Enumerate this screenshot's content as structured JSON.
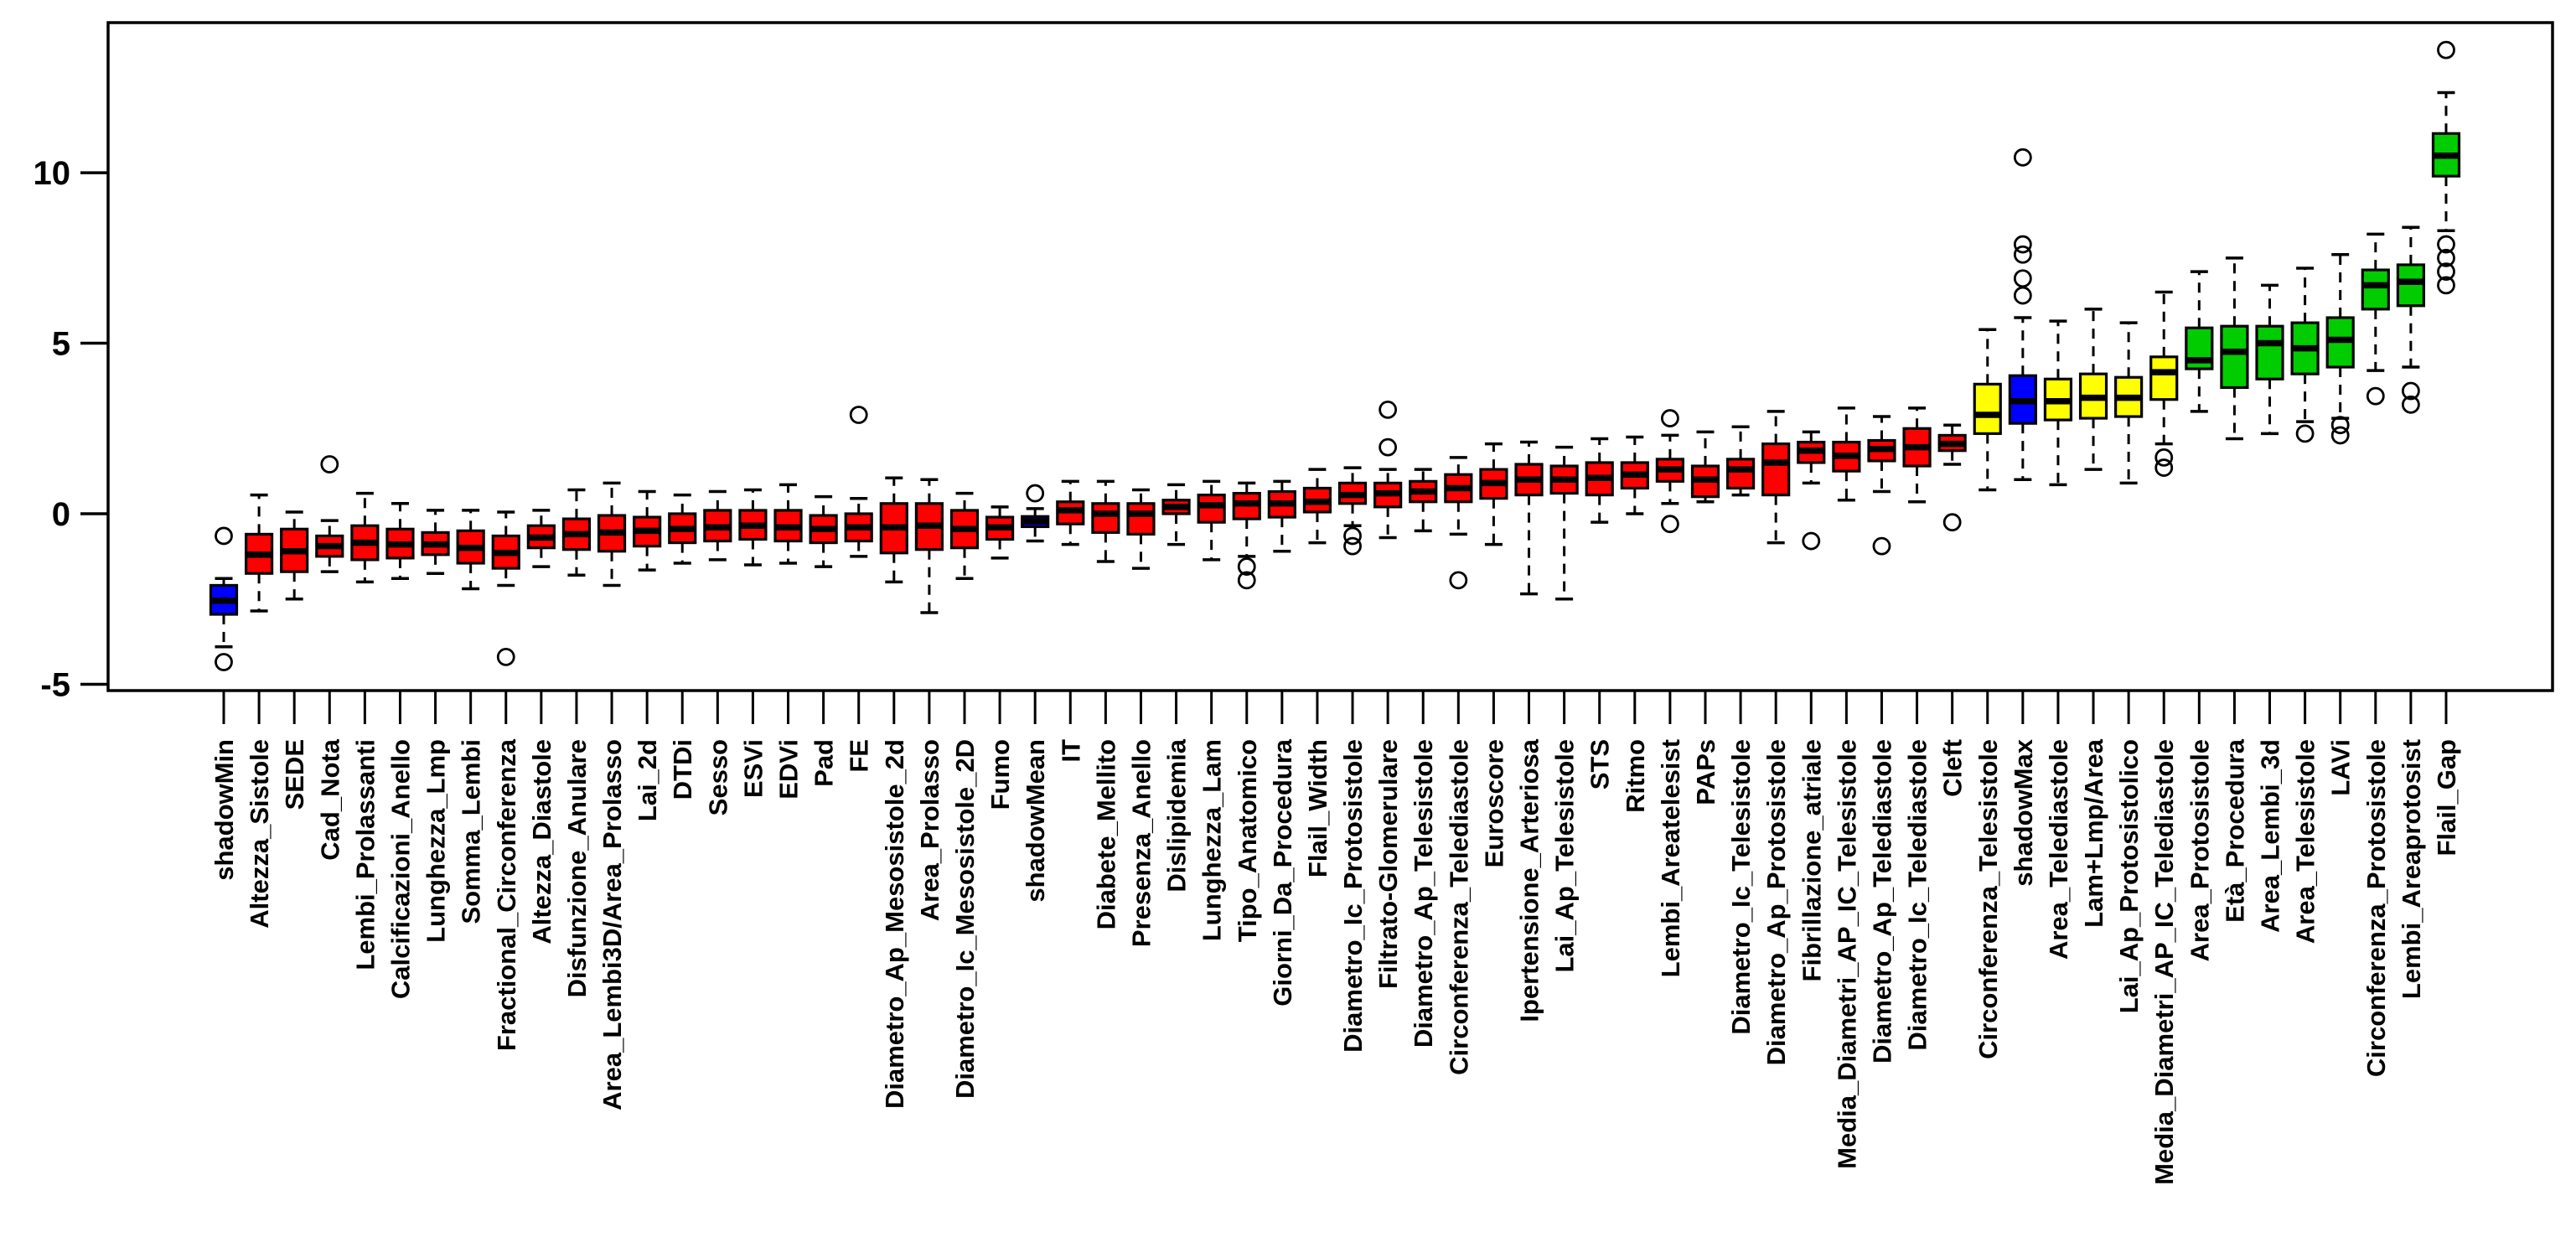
{
  "chart_data": {
    "type": "bar",
    "subtype": "boxplot",
    "title": "",
    "xlabel": "",
    "ylabel": "",
    "ylim": [
      -5.2,
      14.4
    ],
    "yticks": [
      -5,
      0,
      5,
      10
    ],
    "grid": false,
    "legend": "none",
    "colors": {
      "rejected": "#FF0000",
      "tentative": "#FFFF00",
      "confirmed": "#00CC00",
      "shadow": "#0000FF",
      "axis": "#000000"
    },
    "boxes": [
      {
        "label": "shadowMin",
        "color": "shadow",
        "med": -2.55,
        "q1": -2.95,
        "q3": -2.1,
        "lo": -3.9,
        "hi": -1.9,
        "out": [
          -0.65,
          -4.35
        ]
      },
      {
        "label": "Altezza_Sistole",
        "color": "rejected",
        "med": -1.2,
        "q1": -1.75,
        "q3": -0.6,
        "lo": -2.85,
        "hi": 0.55,
        "out": []
      },
      {
        "label": "SEDE",
        "color": "rejected",
        "med": -1.1,
        "q1": -1.7,
        "q3": -0.45,
        "lo": -2.5,
        "hi": 0.05,
        "out": []
      },
      {
        "label": "Cad_Nota",
        "color": "rejected",
        "med": -0.95,
        "q1": -1.25,
        "q3": -0.65,
        "lo": -1.7,
        "hi": -0.2,
        "out": [
          1.45
        ]
      },
      {
        "label": "Lembi_Prolassanti",
        "color": "rejected",
        "med": -0.85,
        "q1": -1.35,
        "q3": -0.35,
        "lo": -2.0,
        "hi": 0.6,
        "out": []
      },
      {
        "label": "Calcificazioni_Anello",
        "color": "rejected",
        "med": -0.9,
        "q1": -1.3,
        "q3": -0.45,
        "lo": -1.9,
        "hi": 0.3,
        "out": []
      },
      {
        "label": "Lunghezza_Lmp",
        "color": "rejected",
        "med": -0.9,
        "q1": -1.2,
        "q3": -0.55,
        "lo": -1.75,
        "hi": 0.1,
        "out": []
      },
      {
        "label": "Somma_Lembi",
        "color": "rejected",
        "med": -1.0,
        "q1": -1.45,
        "q3": -0.5,
        "lo": -2.2,
        "hi": 0.1,
        "out": []
      },
      {
        "label": "Fractional_Circonferenza",
        "color": "rejected",
        "med": -1.15,
        "q1": -1.6,
        "q3": -0.65,
        "lo": -2.1,
        "hi": 0.05,
        "out": [
          -4.2
        ]
      },
      {
        "label": "Altezza_Diastole",
        "color": "rejected",
        "med": -0.7,
        "q1": -1.0,
        "q3": -0.35,
        "lo": -1.55,
        "hi": 0.1,
        "out": []
      },
      {
        "label": "Disfunzione_Anulare",
        "color": "rejected",
        "med": -0.6,
        "q1": -1.05,
        "q3": -0.15,
        "lo": -1.8,
        "hi": 0.7,
        "out": []
      },
      {
        "label": "Area_Lembi3D/Area_Prolasso",
        "color": "rejected",
        "med": -0.55,
        "q1": -1.1,
        "q3": -0.05,
        "lo": -2.1,
        "hi": 0.9,
        "out": []
      },
      {
        "label": "Lai_2d",
        "color": "rejected",
        "med": -0.5,
        "q1": -0.95,
        "q3": -0.1,
        "lo": -1.65,
        "hi": 0.65,
        "out": []
      },
      {
        "label": "DTDi",
        "color": "rejected",
        "med": -0.45,
        "q1": -0.85,
        "q3": 0.0,
        "lo": -1.45,
        "hi": 0.55,
        "out": []
      },
      {
        "label": "Sesso",
        "color": "rejected",
        "med": -0.4,
        "q1": -0.8,
        "q3": 0.1,
        "lo": -1.35,
        "hi": 0.65,
        "out": []
      },
      {
        "label": "ESVi",
        "color": "rejected",
        "med": -0.35,
        "q1": -0.75,
        "q3": 0.1,
        "lo": -1.5,
        "hi": 0.7,
        "out": []
      },
      {
        "label": "EDVi",
        "color": "rejected",
        "med": -0.4,
        "q1": -0.8,
        "q3": 0.1,
        "lo": -1.45,
        "hi": 0.85,
        "out": []
      },
      {
        "label": "Pad",
        "color": "rejected",
        "med": -0.45,
        "q1": -0.85,
        "q3": -0.05,
        "lo": -1.55,
        "hi": 0.5,
        "out": []
      },
      {
        "label": "FE",
        "color": "rejected",
        "med": -0.4,
        "q1": -0.8,
        "q3": 0.0,
        "lo": -1.25,
        "hi": 0.45,
        "out": [
          2.9
        ]
      },
      {
        "label": "Diametro_Ap_Mesosistole_2d",
        "color": "rejected",
        "med": -0.4,
        "q1": -1.15,
        "q3": 0.3,
        "lo": -2.0,
        "hi": 1.05,
        "out": []
      },
      {
        "label": "Area_Prolasso",
        "color": "rejected",
        "med": -0.35,
        "q1": -1.05,
        "q3": 0.3,
        "lo": -2.9,
        "hi": 1.0,
        "out": []
      },
      {
        "label": "Diametro_Ic_Mesosistole_2D",
        "color": "rejected",
        "med": -0.45,
        "q1": -1.0,
        "q3": 0.1,
        "lo": -1.9,
        "hi": 0.6,
        "out": []
      },
      {
        "label": "Fumo",
        "color": "rejected",
        "med": -0.4,
        "q1": -0.75,
        "q3": -0.1,
        "lo": -1.3,
        "hi": 0.2,
        "out": []
      },
      {
        "label": "shadowMean",
        "color": "shadow",
        "med": -0.22,
        "q1": -0.38,
        "q3": -0.08,
        "lo": -0.8,
        "hi": 0.15,
        "out": [
          0.6
        ]
      },
      {
        "label": "IT",
        "color": "rejected",
        "med": 0.1,
        "q1": -0.3,
        "q3": 0.35,
        "lo": -0.9,
        "hi": 0.95,
        "out": []
      },
      {
        "label": "Diabete_Mellito",
        "color": "rejected",
        "med": 0.0,
        "q1": -0.55,
        "q3": 0.3,
        "lo": -1.4,
        "hi": 0.95,
        "out": []
      },
      {
        "label": "Presenza_Anello",
        "color": "rejected",
        "med": 0.0,
        "q1": -0.6,
        "q3": 0.3,
        "lo": -1.6,
        "hi": 0.7,
        "out": []
      },
      {
        "label": "Dislipidemia",
        "color": "rejected",
        "med": 0.2,
        "q1": 0.0,
        "q3": 0.4,
        "lo": -0.9,
        "hi": 0.85,
        "out": []
      },
      {
        "label": "Lunghezza_Lam",
        "color": "rejected",
        "med": 0.25,
        "q1": -0.25,
        "q3": 0.55,
        "lo": -1.35,
        "hi": 0.95,
        "out": []
      },
      {
        "label": "Tipo_Anatomico",
        "color": "rejected",
        "med": 0.3,
        "q1": -0.15,
        "q3": 0.6,
        "lo": -1.25,
        "hi": 0.9,
        "out": [
          -1.55,
          -1.95
        ]
      },
      {
        "label": "Giorni_Da_Procedura",
        "color": "rejected",
        "med": 0.3,
        "q1": -0.1,
        "q3": 0.65,
        "lo": -1.1,
        "hi": 0.95,
        "out": []
      },
      {
        "label": "Flail_Width",
        "color": "rejected",
        "med": 0.35,
        "q1": 0.05,
        "q3": 0.75,
        "lo": -0.85,
        "hi": 1.3,
        "out": []
      },
      {
        "label": "Diametro_Ic_Protosistole",
        "color": "rejected",
        "med": 0.55,
        "q1": 0.3,
        "q3": 0.9,
        "lo": -0.35,
        "hi": 1.35,
        "out": [
          -0.65,
          -0.95
        ]
      },
      {
        "label": "Filtrato-Glomerulare",
        "color": "rejected",
        "med": 0.6,
        "q1": 0.2,
        "q3": 0.9,
        "lo": -0.7,
        "hi": 1.3,
        "out": [
          3.05,
          1.95
        ]
      },
      {
        "label": "Diametro_Ap_Telesistole",
        "color": "rejected",
        "med": 0.65,
        "q1": 0.35,
        "q3": 0.95,
        "lo": -0.5,
        "hi": 1.3,
        "out": []
      },
      {
        "label": "Circonferenza_Telediastole",
        "color": "rejected",
        "med": 0.75,
        "q1": 0.35,
        "q3": 1.15,
        "lo": -0.6,
        "hi": 1.65,
        "out": [
          -1.95
        ]
      },
      {
        "label": "Euroscore",
        "color": "rejected",
        "med": 0.9,
        "q1": 0.45,
        "q3": 1.3,
        "lo": -0.9,
        "hi": 2.05,
        "out": []
      },
      {
        "label": "Ipertensione_Arteriosa",
        "color": "rejected",
        "med": 1.0,
        "q1": 0.55,
        "q3": 1.45,
        "lo": -2.35,
        "hi": 2.1,
        "out": []
      },
      {
        "label": "Lai_Ap_Telesistole",
        "color": "rejected",
        "med": 1.0,
        "q1": 0.6,
        "q3": 1.4,
        "lo": -2.5,
        "hi": 1.95,
        "out": []
      },
      {
        "label": "STS",
        "color": "rejected",
        "med": 1.05,
        "q1": 0.55,
        "q3": 1.5,
        "lo": -0.25,
        "hi": 2.2,
        "out": []
      },
      {
        "label": "Ritmo",
        "color": "rejected",
        "med": 1.15,
        "q1": 0.75,
        "q3": 1.5,
        "lo": 0.0,
        "hi": 2.25,
        "out": []
      },
      {
        "label": "Lembi_Areatelesist",
        "color": "rejected",
        "med": 1.3,
        "q1": 0.95,
        "q3": 1.6,
        "lo": 0.3,
        "hi": 2.3,
        "out": [
          2.8,
          -0.3
        ]
      },
      {
        "label": "PAPs",
        "color": "rejected",
        "med": 1.0,
        "q1": 0.5,
        "q3": 1.4,
        "lo": 0.35,
        "hi": 2.4,
        "out": []
      },
      {
        "label": "Diametro_Ic_Telesistole",
        "color": "rejected",
        "med": 1.3,
        "q1": 0.75,
        "q3": 1.6,
        "lo": 0.55,
        "hi": 2.55,
        "out": []
      },
      {
        "label": "Diametro_Ap_Protosistole",
        "color": "rejected",
        "med": 1.5,
        "q1": 0.55,
        "q3": 2.05,
        "lo": -0.85,
        "hi": 3.0,
        "out": []
      },
      {
        "label": "Fibrillazione_atriale",
        "color": "rejected",
        "med": 1.85,
        "q1": 1.5,
        "q3": 2.1,
        "lo": 0.9,
        "hi": 2.4,
        "out": [
          -0.8
        ]
      },
      {
        "label": "Media_Diametri_AP_IC_Telesistole",
        "color": "rejected",
        "med": 1.7,
        "q1": 1.25,
        "q3": 2.1,
        "lo": 0.4,
        "hi": 3.1,
        "out": []
      },
      {
        "label": "Diametro_Ap_Telediastole",
        "color": "rejected",
        "med": 1.9,
        "q1": 1.55,
        "q3": 2.15,
        "lo": 0.65,
        "hi": 2.85,
        "out": [
          -0.95
        ]
      },
      {
        "label": "Diametro_Ic_Telediastole",
        "color": "rejected",
        "med": 1.95,
        "q1": 1.4,
        "q3": 2.5,
        "lo": 0.35,
        "hi": 3.1,
        "out": []
      },
      {
        "label": "Cleft",
        "color": "rejected",
        "med": 2.05,
        "q1": 1.85,
        "q3": 2.3,
        "lo": 1.45,
        "hi": 2.6,
        "out": [
          -0.25
        ]
      },
      {
        "label": "Circonferenza_Telesistole",
        "color": "tentative",
        "med": 2.9,
        "q1": 2.35,
        "q3": 3.8,
        "lo": 0.7,
        "hi": 5.4,
        "out": []
      },
      {
        "label": "shadowMax",
        "color": "shadow",
        "med": 3.3,
        "q1": 2.65,
        "q3": 4.05,
        "lo": 1.0,
        "hi": 5.75,
        "out": [
          10.45,
          7.9,
          7.6,
          6.9,
          6.4
        ]
      },
      {
        "label": "Area_Telediastole",
        "color": "tentative",
        "med": 3.3,
        "q1": 2.75,
        "q3": 3.95,
        "lo": 0.85,
        "hi": 5.65,
        "out": []
      },
      {
        "label": "Lam+Lmp/Area",
        "color": "tentative",
        "med": 3.4,
        "q1": 2.8,
        "q3": 4.1,
        "lo": 1.3,
        "hi": 6.0,
        "out": []
      },
      {
        "label": "Lai_Ap_Protosistolico",
        "color": "tentative",
        "med": 3.4,
        "q1": 2.85,
        "q3": 4.0,
        "lo": 0.9,
        "hi": 5.6,
        "out": []
      },
      {
        "label": "Media_Diametri_AP_IC_Telediastole",
        "color": "tentative",
        "med": 4.15,
        "q1": 3.35,
        "q3": 4.6,
        "lo": 2.05,
        "hi": 6.5,
        "out": [
          1.65,
          1.35
        ]
      },
      {
        "label": "Area_Protosistole",
        "color": "confirmed",
        "med": 4.5,
        "q1": 4.25,
        "q3": 5.45,
        "lo": 3.0,
        "hi": 7.1,
        "out": []
      },
      {
        "label": "Età_Procedura",
        "color": "confirmed",
        "med": 4.75,
        "q1": 3.7,
        "q3": 5.5,
        "lo": 2.2,
        "hi": 7.5,
        "out": []
      },
      {
        "label": "Area_Lembi_3d",
        "color": "confirmed",
        "med": 5.0,
        "q1": 3.95,
        "q3": 5.5,
        "lo": 2.35,
        "hi": 6.7,
        "out": []
      },
      {
        "label": "Area_Telesistole",
        "color": "confirmed",
        "med": 4.85,
        "q1": 4.1,
        "q3": 5.6,
        "lo": 2.7,
        "hi": 7.2,
        "out": [
          2.35
        ]
      },
      {
        "label": "LAVi",
        "color": "confirmed",
        "med": 5.1,
        "q1": 4.3,
        "q3": 5.75,
        "lo": 2.8,
        "hi": 7.6,
        "out": [
          2.6,
          2.3
        ]
      },
      {
        "label": "Circonferenza_Protosistole",
        "color": "confirmed",
        "med": 6.7,
        "q1": 6.0,
        "q3": 7.15,
        "lo": 4.2,
        "hi": 8.2,
        "out": [
          3.45
        ]
      },
      {
        "label": "Lembi_Areaprotosist",
        "color": "confirmed",
        "med": 6.8,
        "q1": 6.1,
        "q3": 7.3,
        "lo": 4.3,
        "hi": 8.4,
        "out": [
          3.6,
          3.2
        ]
      },
      {
        "label": "Flail_Gap",
        "color": "confirmed",
        "med": 10.5,
        "q1": 9.9,
        "q3": 11.15,
        "lo": 8.3,
        "hi": 12.35,
        "out": [
          13.6,
          7.9,
          7.5,
          7.1,
          6.7
        ]
      }
    ]
  }
}
